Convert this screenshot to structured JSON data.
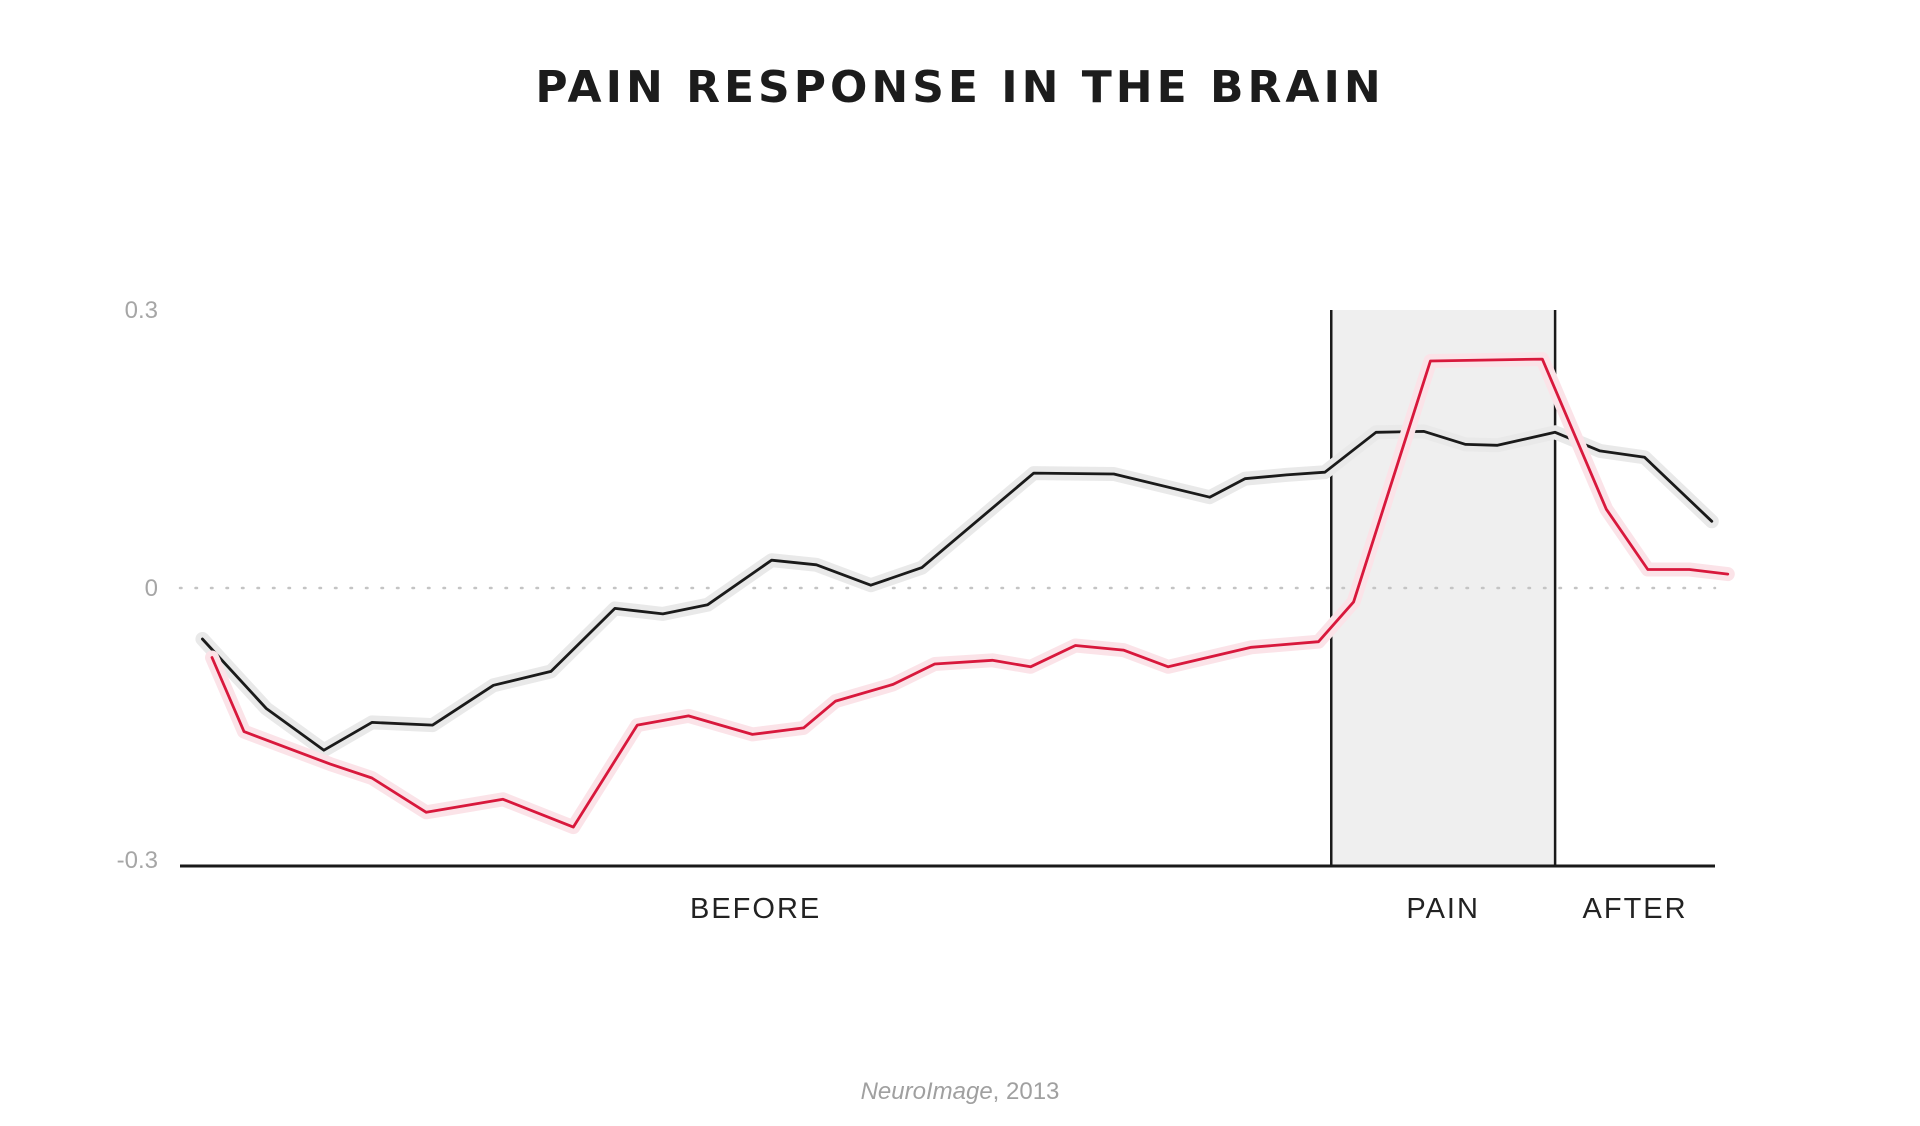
{
  "chart_data": {
    "type": "line",
    "title": "PAIN RESPONSE IN THE BRAIN",
    "source": {
      "journal": "NeuroImage",
      "year": ", 2013"
    },
    "yaxis": {
      "min": -0.3,
      "max": 0.3,
      "ticks": [
        {
          "value": 0.3,
          "label": "0.3"
        },
        {
          "value": 0,
          "label": "0"
        },
        {
          "value": -0.3,
          "label": "-0.3"
        }
      ]
    },
    "xaxis": {
      "min": 0,
      "max": 48
    },
    "periods": [
      {
        "label": "BEFORE",
        "start": 0,
        "end": 36
      },
      {
        "label": "PAIN",
        "start": 36,
        "end": 43
      },
      {
        "label": "AFTER",
        "start": 43,
        "end": 48
      }
    ],
    "zero_line": true,
    "series": [
      {
        "color": "#1a1a1a",
        "halo": "#e9e9e9",
        "points": [
          [
            0.7,
            -0.055
          ],
          [
            2.7,
            -0.13
          ],
          [
            4.5,
            -0.175
          ],
          [
            6.0,
            -0.145
          ],
          [
            7.9,
            -0.148
          ],
          [
            9.8,
            -0.105
          ],
          [
            11.6,
            -0.09
          ],
          [
            13.6,
            -0.022
          ],
          [
            15.1,
            -0.028
          ],
          [
            16.5,
            -0.018
          ],
          [
            18.5,
            0.03
          ],
          [
            19.9,
            0.025
          ],
          [
            21.6,
            0.003
          ],
          [
            23.2,
            0.022
          ],
          [
            26.7,
            0.124
          ],
          [
            29.2,
            0.123
          ],
          [
            32.2,
            0.098
          ],
          [
            33.3,
            0.118
          ],
          [
            34.6,
            0.122
          ],
          [
            35.8,
            0.125
          ],
          [
            37.4,
            0.168
          ],
          [
            38.9,
            0.169
          ],
          [
            40.2,
            0.155
          ],
          [
            41.2,
            0.154
          ],
          [
            43.0,
            0.168
          ],
          [
            44.4,
            0.148
          ],
          [
            45.8,
            0.141
          ],
          [
            47.9,
            0.072
          ]
        ]
      },
      {
        "color": "#d8183c",
        "halo": "#fbe3e8",
        "points": [
          [
            1.0,
            -0.075
          ],
          [
            2.0,
            -0.155
          ],
          [
            4.7,
            -0.19
          ],
          [
            6.0,
            -0.205
          ],
          [
            7.7,
            -0.242
          ],
          [
            10.1,
            -0.228
          ],
          [
            12.3,
            -0.258
          ],
          [
            14.3,
            -0.148
          ],
          [
            15.9,
            -0.138
          ],
          [
            17.9,
            -0.158
          ],
          [
            19.5,
            -0.151
          ],
          [
            20.5,
            -0.122
          ],
          [
            22.3,
            -0.104
          ],
          [
            23.6,
            -0.082
          ],
          [
            25.4,
            -0.078
          ],
          [
            26.6,
            -0.085
          ],
          [
            28.0,
            -0.062
          ],
          [
            29.5,
            -0.067
          ],
          [
            30.9,
            -0.085
          ],
          [
            33.5,
            -0.064
          ],
          [
            35.6,
            -0.058
          ],
          [
            36.7,
            -0.015
          ],
          [
            39.1,
            0.245
          ],
          [
            42.6,
            0.247
          ],
          [
            44.6,
            0.085
          ],
          [
            45.9,
            0.02
          ],
          [
            47.2,
            0.02
          ],
          [
            48.4,
            0.015
          ]
        ]
      }
    ]
  }
}
